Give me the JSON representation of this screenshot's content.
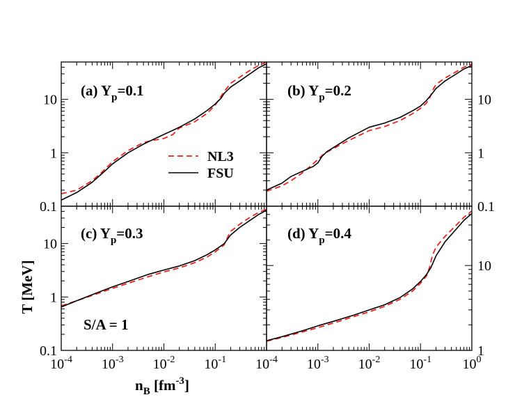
{
  "chart_data": {
    "type": "line",
    "xlabel": {
      "main": "n",
      "sub": "B",
      "unit_pre": " [fm",
      "unit_sup": "-3",
      "unit_post": "]"
    },
    "ylabel": "T [MeV]",
    "xaxis": {
      "scale": "log",
      "range": [
        0.0001,
        1
      ],
      "ticks": [
        {
          "value": 0.0001,
          "base": "10",
          "exp": "-4"
        },
        {
          "value": 0.001,
          "base": "10",
          "exp": "-3"
        },
        {
          "value": 0.01,
          "base": "10",
          "exp": "-2"
        },
        {
          "value": 0.1,
          "base": "10",
          "exp": "-1"
        },
        {
          "value": 1,
          "base": "10",
          "exp": "0"
        }
      ]
    },
    "annotation": "S/A = 1",
    "legend": [
      {
        "name": "NL3",
        "color": "#e8231f",
        "style": "dashed"
      },
      {
        "name": "FSU",
        "color": "#000000",
        "style": "solid"
      }
    ],
    "panels": [
      {
        "id": "a",
        "label": "(a) Y",
        "label_sub": "p",
        "label_post": "=0.1",
        "yaxis": {
          "scale": "log",
          "range": [
            0.1,
            50
          ],
          "side": "left",
          "ticks": [
            {
              "value": 0.1,
              "label": "0.1"
            },
            {
              "value": 1,
              "label": "1"
            },
            {
              "value": 10,
              "label": "10"
            }
          ]
        },
        "series": [
          {
            "name": "NL3",
            "points": [
              [
                0.0001,
                0.17
              ],
              [
                0.0002,
                0.2
              ],
              [
                0.0004,
                0.3
              ],
              [
                0.0006,
                0.42
              ],
              [
                0.001,
                0.68
              ],
              [
                0.002,
                1.1
              ],
              [
                0.004,
                1.55
              ],
              [
                0.006,
                1.7
              ],
              [
                0.01,
                1.85
              ],
              [
                0.015,
                2.2
              ],
              [
                0.02,
                2.9
              ],
              [
                0.04,
                3.8
              ],
              [
                0.07,
                5.5
              ],
              [
                0.1,
                7.8
              ],
              [
                0.15,
                14
              ],
              [
                0.2,
                20
              ],
              [
                0.3,
                26
              ],
              [
                0.5,
                36
              ],
              [
                0.7,
                43
              ],
              [
                1,
                50
              ]
            ]
          },
          {
            "name": "FSU",
            "points": [
              [
                0.0001,
                0.13
              ],
              [
                0.0002,
                0.18
              ],
              [
                0.0004,
                0.28
              ],
              [
                0.0007,
                0.45
              ],
              [
                0.001,
                0.62
              ],
              [
                0.002,
                1.0
              ],
              [
                0.004,
                1.45
              ],
              [
                0.006,
                1.75
              ],
              [
                0.01,
                2.2
              ],
              [
                0.02,
                3.0
              ],
              [
                0.04,
                4.3
              ],
              [
                0.07,
                6.2
              ],
              [
                0.1,
                8.2
              ],
              [
                0.13,
                10.5
              ],
              [
                0.15,
                13
              ],
              [
                0.2,
                17
              ],
              [
                0.3,
                22
              ],
              [
                0.5,
                31
              ],
              [
                0.7,
                39
              ],
              [
                1,
                46
              ]
            ]
          }
        ]
      },
      {
        "id": "b",
        "label": "(b) Y",
        "label_sub": "p",
        "label_post": "=0.2",
        "yaxis": {
          "scale": "log",
          "range": [
            0.1,
            50
          ],
          "side": "right",
          "ticks": [
            {
              "value": 0.1,
              "label": "0.1"
            },
            {
              "value": 1,
              "label": "1"
            },
            {
              "value": 10,
              "label": "10"
            }
          ]
        },
        "series": [
          {
            "name": "NL3",
            "points": [
              [
                0.0001,
                0.19
              ],
              [
                0.0002,
                0.24
              ],
              [
                0.0003,
                0.3
              ],
              [
                0.0005,
                0.42
              ],
              [
                0.0007,
                0.55
              ],
              [
                0.001,
                0.75
              ],
              [
                0.0013,
                0.95
              ],
              [
                0.002,
                1.2
              ],
              [
                0.004,
                1.7
              ],
              [
                0.01,
                2.6
              ],
              [
                0.02,
                3.1
              ],
              [
                0.04,
                4.0
              ],
              [
                0.07,
                5.4
              ],
              [
                0.1,
                6.8
              ],
              [
                0.13,
                8.5
              ],
              [
                0.15,
                10.5
              ],
              [
                0.18,
                16
              ],
              [
                0.2,
                19
              ],
              [
                0.3,
                25
              ],
              [
                0.5,
                33
              ],
              [
                0.7,
                40
              ],
              [
                1,
                46
              ]
            ]
          },
          {
            "name": "FSU",
            "points": [
              [
                0.0001,
                0.2
              ],
              [
                0.0002,
                0.27
              ],
              [
                0.0003,
                0.36
              ],
              [
                0.0005,
                0.45
              ],
              [
                0.0008,
                0.55
              ],
              [
                0.001,
                0.65
              ],
              [
                0.0012,
                0.85
              ],
              [
                0.0015,
                1.05
              ],
              [
                0.002,
                1.25
              ],
              [
                0.004,
                1.9
              ],
              [
                0.01,
                3.0
              ],
              [
                0.02,
                3.6
              ],
              [
                0.04,
                4.6
              ],
              [
                0.07,
                6.1
              ],
              [
                0.1,
                7.5
              ],
              [
                0.13,
                9.5
              ],
              [
                0.16,
                12
              ],
              [
                0.2,
                16
              ],
              [
                0.3,
                22
              ],
              [
                0.5,
                30
              ],
              [
                0.7,
                37
              ],
              [
                1,
                43
              ]
            ]
          }
        ]
      },
      {
        "id": "c",
        "label": "(c) Y",
        "label_sub": "p",
        "label_post": "=0.3",
        "yaxis": {
          "scale": "log",
          "range": [
            0.1,
            50
          ],
          "side": "left",
          "ticks": [
            {
              "value": 0.1,
              "label": "0.1"
            },
            {
              "value": 1,
              "label": "1"
            },
            {
              "value": 10,
              "label": "10"
            }
          ]
        },
        "series": [
          {
            "name": "NL3",
            "points": [
              [
                0.0001,
                0.68
              ],
              [
                0.0002,
                0.85
              ],
              [
                0.0005,
                1.15
              ],
              [
                0.001,
                1.45
              ],
              [
                0.002,
                1.8
              ],
              [
                0.005,
                2.4
              ],
              [
                0.01,
                2.95
              ],
              [
                0.02,
                3.5
              ],
              [
                0.04,
                4.4
              ],
              [
                0.07,
                5.6
              ],
              [
                0.1,
                7.0
              ],
              [
                0.15,
                9.5
              ],
              [
                0.18,
                14
              ],
              [
                0.2,
                17
              ],
              [
                0.3,
                23
              ],
              [
                0.5,
                32
              ],
              [
                0.7,
                38
              ],
              [
                1,
                44
              ]
            ]
          },
          {
            "name": "FSU",
            "points": [
              [
                0.0001,
                0.65
              ],
              [
                0.0002,
                0.85
              ],
              [
                0.0005,
                1.2
              ],
              [
                0.001,
                1.55
              ],
              [
                0.002,
                1.95
              ],
              [
                0.005,
                2.65
              ],
              [
                0.01,
                3.2
              ],
              [
                0.02,
                3.8
              ],
              [
                0.04,
                4.8
              ],
              [
                0.07,
                6.2
              ],
              [
                0.1,
                7.6
              ],
              [
                0.15,
                10
              ],
              [
                0.2,
                14.5
              ],
              [
                0.3,
                20
              ],
              [
                0.5,
                28
              ],
              [
                0.7,
                35
              ],
              [
                1,
                42
              ]
            ]
          }
        ]
      },
      {
        "id": "d",
        "label": "(d) Y",
        "label_sub": "p",
        "label_post": "=0.4",
        "yaxis": {
          "scale": "log",
          "range": [
            1,
            50
          ],
          "side": "right",
          "ticks": [
            {
              "value": 1,
              "label": "1"
            },
            {
              "value": 10,
              "label": "10"
            }
          ]
        },
        "series": [
          {
            "name": "NL3",
            "points": [
              [
                0.0001,
                1.28
              ],
              [
                0.0002,
                1.42
              ],
              [
                0.0005,
                1.65
              ],
              [
                0.001,
                1.85
              ],
              [
                0.002,
                2.1
              ],
              [
                0.005,
                2.5
              ],
              [
                0.01,
                2.85
              ],
              [
                0.02,
                3.3
              ],
              [
                0.04,
                4.0
              ],
              [
                0.07,
                5.0
              ],
              [
                0.1,
                6.2
              ],
              [
                0.13,
                7.5
              ],
              [
                0.15,
                9.5
              ],
              [
                0.17,
                13
              ],
              [
                0.2,
                16.5
              ],
              [
                0.3,
                22
              ],
              [
                0.5,
                30
              ],
              [
                0.7,
                37
              ],
              [
                1,
                44
              ]
            ]
          },
          {
            "name": "FSU",
            "points": [
              [
                0.0001,
                1.3
              ],
              [
                0.0002,
                1.45
              ],
              [
                0.0005,
                1.7
              ],
              [
                0.001,
                1.95
              ],
              [
                0.002,
                2.2
              ],
              [
                0.005,
                2.6
              ],
              [
                0.01,
                3.0
              ],
              [
                0.02,
                3.45
              ],
              [
                0.04,
                4.2
              ],
              [
                0.07,
                5.3
              ],
              [
                0.1,
                6.5
              ],
              [
                0.13,
                7.8
              ],
              [
                0.16,
                9.5
              ],
              [
                0.2,
                13
              ],
              [
                0.3,
                19
              ],
              [
                0.5,
                27
              ],
              [
                0.7,
                34
              ],
              [
                1,
                41
              ]
            ]
          }
        ]
      }
    ]
  }
}
